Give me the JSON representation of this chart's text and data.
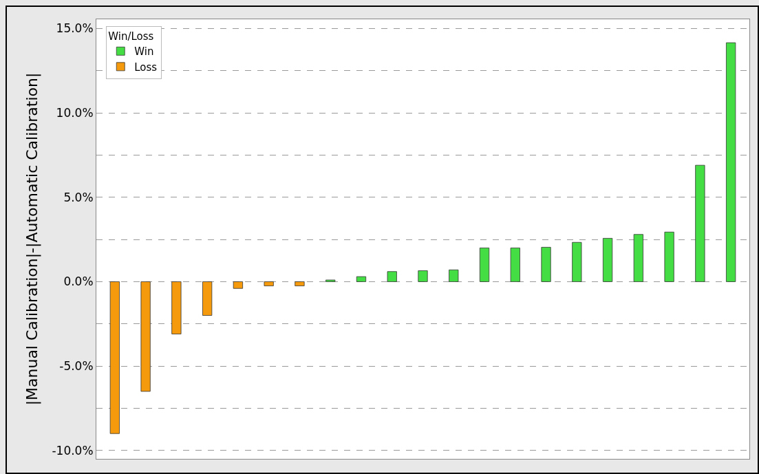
{
  "chart_data": {
    "type": "bar",
    "ylabel": "|Manual Calibration|-|Automatic Calibration|",
    "legend_title": "Win/Loss",
    "categories": [
      null,
      null,
      null,
      null,
      null,
      null,
      null,
      null,
      null,
      null,
      null,
      null,
      null,
      null,
      null,
      null,
      null,
      null,
      null,
      null,
      null
    ],
    "series": [
      {
        "name": "Win",
        "color": "#44dd44",
        "values": [
          null,
          null,
          null,
          null,
          null,
          null,
          null,
          0.1,
          0.3,
          0.6,
          0.65,
          0.7,
          2.0,
          2.0,
          2.04,
          2.33,
          2.57,
          2.8,
          2.94,
          6.9,
          14.16
        ]
      },
      {
        "name": "Loss",
        "color": "#f59a0c",
        "values": [
          -9.0,
          -6.5,
          -3.1,
          -2.0,
          -0.4,
          -0.25,
          -0.25,
          null,
          null,
          null,
          null,
          null,
          null,
          null,
          null,
          null,
          null,
          null,
          null,
          null,
          null
        ]
      }
    ],
    "ylim": [
      -10.5,
      15.55
    ],
    "yticks": [
      {
        "value": -10,
        "label": "-10.0%"
      },
      {
        "value": -7.5,
        "label": null
      },
      {
        "value": -5,
        "label": "-5.0%"
      },
      {
        "value": -2.5,
        "label": null
      },
      {
        "value": 0,
        "label": "0.0%"
      },
      {
        "value": 2.5,
        "label": null
      },
      {
        "value": 5,
        "label": "5.0%"
      },
      {
        "value": 7.5,
        "label": null
      },
      {
        "value": 10,
        "label": "10.0%"
      },
      {
        "value": 12.5,
        "label": null
      },
      {
        "value": 15,
        "label": "15.0%"
      }
    ],
    "grid": "y",
    "legend": "top left",
    "tick_labels": "y"
  }
}
